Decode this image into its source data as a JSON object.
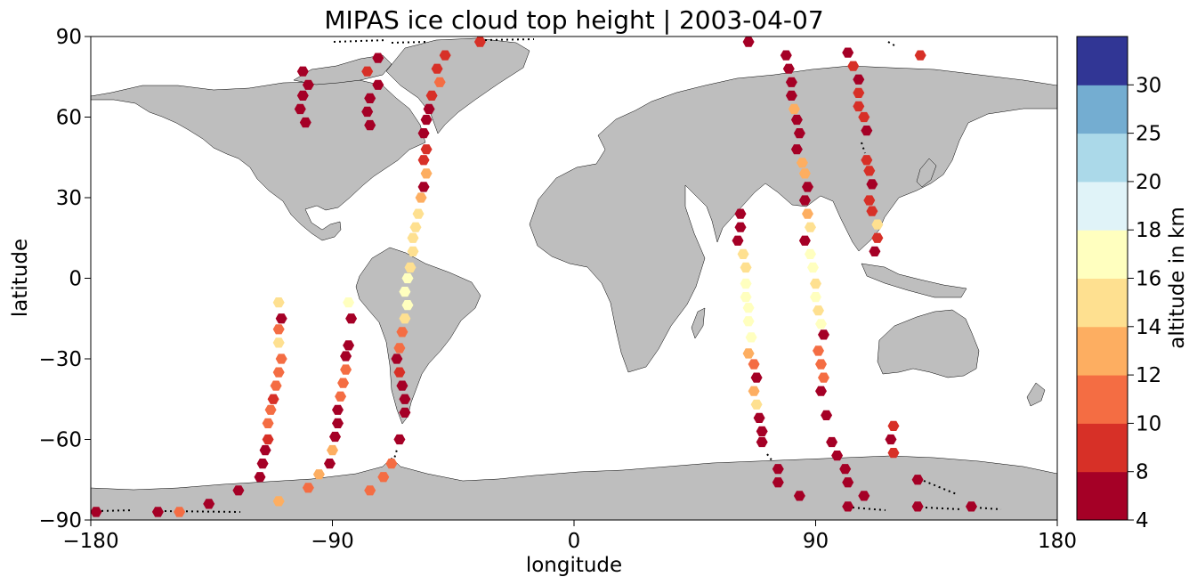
{
  "chart_data": {
    "type": "scatter",
    "title": "MIPAS ice cloud top height | 2003-04-07",
    "xlabel": "longitude",
    "ylabel": "latitude",
    "xlim": [
      -180,
      180
    ],
    "ylim": [
      -90,
      90
    ],
    "xticks": [
      "−180",
      "−90",
      "0",
      "90",
      "180"
    ],
    "yticks": [
      "90",
      "60",
      "30",
      "0",
      "−30",
      "−60",
      "−90"
    ],
    "land_color": "#bebebe",
    "marker": "hexagon",
    "colorbar": {
      "label": "altitude in km",
      "boundaries": [
        4,
        8,
        10,
        12,
        14,
        16,
        18,
        20,
        25,
        30
      ],
      "tick_labels": [
        "4",
        "8",
        "10",
        "12",
        "14",
        "16",
        "18",
        "20",
        "25",
        "30"
      ],
      "colors": [
        "#a50026",
        "#d73027",
        "#f46d43",
        "#fdae61",
        "#fee090",
        "#ffffbf",
        "#e0f3f8",
        "#abd9e9",
        "#74add1",
        "#313695"
      ]
    },
    "series": [
      {
        "values": [
          [
            -178,
            -87,
            7
          ],
          [
            -155,
            -87,
            7
          ],
          [
            -147,
            -87,
            11
          ],
          [
            -136,
            -84,
            7
          ],
          [
            -125,
            -79,
            7
          ],
          [
            -117,
            -74,
            7
          ],
          [
            -116,
            -69,
            7
          ],
          [
            -115,
            -64,
            7
          ],
          [
            -114,
            -60,
            9
          ],
          [
            -114,
            -54,
            11
          ],
          [
            -113,
            -49,
            11
          ],
          [
            -112,
            -45,
            9
          ],
          [
            -111,
            -40,
            11
          ],
          [
            -110,
            -35,
            11
          ],
          [
            -109,
            -30,
            11
          ],
          [
            -110,
            -24,
            14
          ],
          [
            -110,
            -19,
            11
          ],
          [
            -109,
            -15,
            7
          ],
          [
            -110,
            -9,
            15
          ]
        ]
      },
      {
        "values": [
          [
            -110,
            -83,
            12
          ],
          [
            -99,
            -78,
            11
          ],
          [
            -95,
            -73,
            12
          ],
          [
            -91,
            -69,
            7
          ],
          [
            -90,
            -64,
            12
          ],
          [
            -89,
            -59,
            7
          ],
          [
            -88,
            -54,
            7
          ],
          [
            -88,
            -49,
            7
          ],
          [
            -87,
            -44,
            11
          ],
          [
            -86,
            -39,
            11
          ],
          [
            -85,
            -34,
            11
          ],
          [
            -85,
            -29,
            7
          ],
          [
            -84,
            -25,
            7
          ],
          [
            -83,
            -15,
            7
          ],
          [
            -84,
            -9,
            17
          ]
        ]
      },
      {
        "values": [
          [
            -76,
            -79,
            11
          ],
          [
            -71,
            -74,
            11
          ],
          [
            -68,
            -69,
            11
          ],
          [
            -65,
            -60,
            7
          ],
          [
            -63,
            -50,
            7
          ],
          [
            -63,
            -45,
            7
          ],
          [
            -64,
            -40,
            7
          ],
          [
            -65,
            -35,
            9
          ],
          [
            -66,
            -30,
            7
          ],
          [
            -65,
            -26,
            11
          ],
          [
            -64,
            -20,
            11
          ],
          [
            -63,
            -15,
            15
          ],
          [
            -62,
            -10,
            17
          ],
          [
            -63,
            -5,
            17
          ],
          [
            -62,
            0,
            17
          ],
          [
            -61,
            4,
            15
          ],
          [
            -60,
            10,
            15
          ],
          [
            -60,
            15,
            15
          ],
          [
            -59,
            19,
            14
          ],
          [
            -58,
            24,
            14
          ],
          [
            -57,
            30,
            13
          ],
          [
            -56,
            34,
            7
          ],
          [
            -55,
            39,
            12
          ],
          [
            -56,
            44,
            9
          ],
          [
            -55,
            48,
            9
          ],
          [
            -56,
            54,
            7
          ],
          [
            -55,
            59,
            7
          ],
          [
            -54,
            63,
            7
          ],
          [
            -53,
            68,
            9
          ],
          [
            -50,
            73,
            11
          ],
          [
            -51,
            78,
            9
          ],
          [
            -48,
            83,
            9
          ],
          [
            -35,
            88,
            9
          ]
        ]
      },
      {
        "values": [
          [
            -101,
            77,
            7
          ],
          [
            -99,
            72,
            7
          ],
          [
            -101,
            68,
            7
          ],
          [
            -102,
            63,
            7
          ],
          [
            -100,
            58,
            7
          ],
          [
            -73,
            82,
            7
          ],
          [
            -77,
            77,
            9
          ],
          [
            -73,
            72,
            7
          ],
          [
            -76,
            67,
            7
          ],
          [
            -77,
            62,
            7
          ],
          [
            -76,
            57,
            7
          ]
        ]
      },
      {
        "values": [
          [
            62,
            24,
            7
          ],
          [
            62,
            19,
            7
          ],
          [
            61,
            14,
            7
          ],
          [
            63,
            9,
            15
          ],
          [
            64,
            4,
            15
          ],
          [
            64,
            -2,
            17
          ],
          [
            64,
            -7,
            17
          ],
          [
            65,
            -11,
            17
          ],
          [
            65,
            -16,
            17
          ],
          [
            66,
            -22,
            17
          ],
          [
            65,
            -28,
            12
          ],
          [
            67,
            -32,
            11
          ],
          [
            68,
            -37,
            7
          ],
          [
            67,
            -42,
            13
          ],
          [
            68,
            -47,
            15
          ],
          [
            69,
            -52,
            7
          ],
          [
            70,
            -57,
            7
          ],
          [
            70,
            -61,
            7
          ],
          [
            76,
            -71,
            7
          ],
          [
            76,
            -76,
            7
          ],
          [
            84,
            -81,
            7
          ]
        ]
      },
      {
        "values": [
          [
            65,
            88,
            7
          ],
          [
            79,
            83,
            7
          ],
          [
            80,
            78,
            7
          ],
          [
            81,
            73,
            7
          ],
          [
            81,
            68,
            7
          ],
          [
            82,
            63,
            12
          ],
          [
            83,
            59,
            7
          ],
          [
            84,
            54,
            7
          ],
          [
            83,
            48,
            7
          ],
          [
            85,
            43,
            12
          ],
          [
            86,
            39,
            12
          ],
          [
            87,
            34,
            7
          ],
          [
            86,
            29,
            7
          ],
          [
            87,
            24,
            12
          ],
          [
            88,
            19,
            15
          ],
          [
            86,
            14,
            7
          ],
          [
            88,
            9,
            17
          ],
          [
            89,
            4,
            16
          ],
          [
            90,
            -2,
            15
          ],
          [
            90,
            -7,
            17
          ],
          [
            91,
            -12,
            15
          ],
          [
            92,
            -17,
            17
          ],
          [
            93,
            -21,
            7
          ],
          [
            91,
            -27,
            11
          ],
          [
            92,
            -32,
            11
          ],
          [
            93,
            -37,
            11
          ],
          [
            92,
            -42,
            7
          ],
          [
            94,
            -51,
            7
          ],
          [
            96,
            -61,
            7
          ],
          [
            98,
            -66,
            7
          ],
          [
            101,
            -71,
            7
          ],
          [
            102,
            -76,
            7
          ],
          [
            102,
            -85,
            7
          ]
        ]
      },
      {
        "values": [
          [
            102,
            84,
            7
          ],
          [
            104,
            79,
            9
          ],
          [
            106,
            74,
            7
          ],
          [
            106,
            69,
            9
          ],
          [
            106,
            64,
            9
          ],
          [
            108,
            60,
            9
          ],
          [
            109,
            55,
            7
          ],
          [
            109,
            44,
            9
          ],
          [
            110,
            40,
            9
          ],
          [
            111,
            35,
            7
          ],
          [
            110,
            29,
            9
          ],
          [
            111,
            25,
            9
          ],
          [
            113,
            20,
            15
          ],
          [
            113,
            15,
            9
          ],
          [
            112,
            10,
            7
          ],
          [
            108,
            -81,
            7
          ],
          [
            119,
            -55,
            9
          ],
          [
            118,
            -60,
            7
          ],
          [
            119,
            -65,
            9
          ],
          [
            128,
            -75,
            7
          ],
          [
            128,
            -85,
            7
          ],
          [
            129,
            83,
            9
          ],
          [
            148,
            -85,
            7
          ]
        ]
      }
    ]
  }
}
